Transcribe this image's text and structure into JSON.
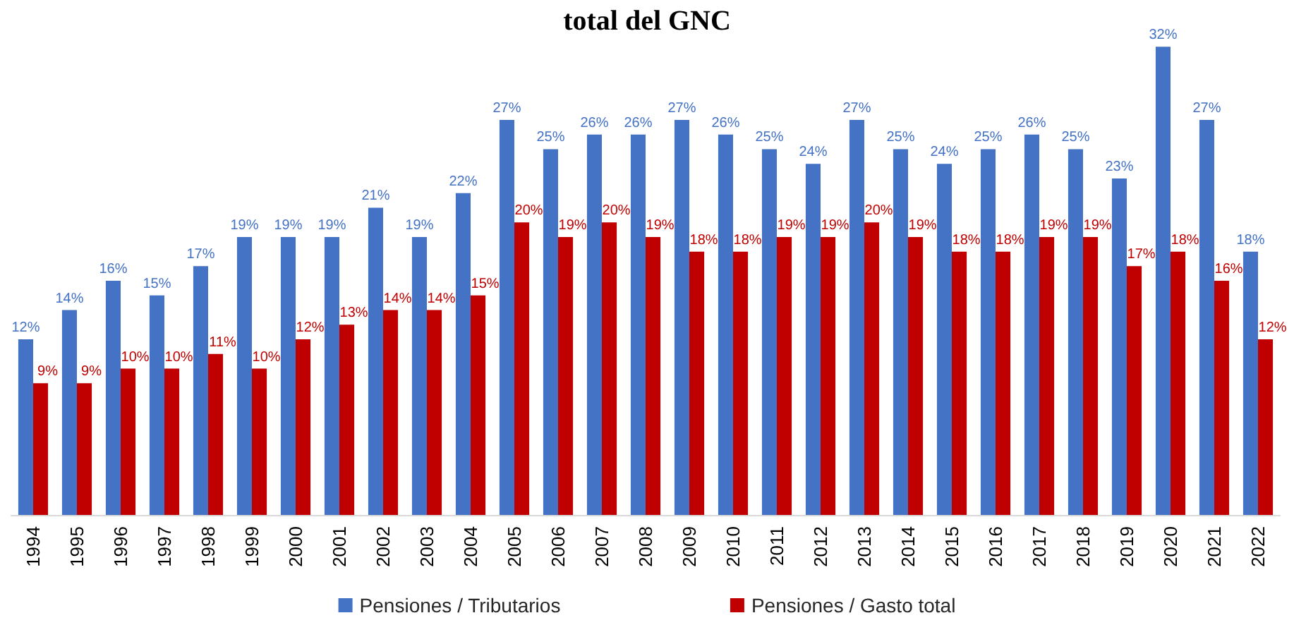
{
  "chart_data": {
    "type": "bar",
    "title": "total del GNC",
    "categories": [
      "1994",
      "1995",
      "1996",
      "1997",
      "1998",
      "1999",
      "2000",
      "2001",
      "2002",
      "2003",
      "2004",
      "2005",
      "2006",
      "2007",
      "2008",
      "2009",
      "2010",
      "2011",
      "2012",
      "2013",
      "2014",
      "2015",
      "2016",
      "2017",
      "2018",
      "2019",
      "2020",
      "2021",
      "2022"
    ],
    "series": [
      {
        "name": "Pensiones / Tributarios",
        "color": "#4472c4",
        "values": [
          12,
          14,
          16,
          15,
          17,
          19,
          19,
          19,
          21,
          19,
          22,
          27,
          25,
          26,
          26,
          27,
          26,
          25,
          24,
          27,
          25,
          24,
          25,
          26,
          25,
          23,
          32,
          27,
          18
        ],
        "value_labels": [
          "12%",
          "14%",
          "16%",
          "15%",
          "17%",
          "19%",
          "19%",
          "19%",
          "21%",
          "19%",
          "22%",
          "27%",
          "25%",
          "26%",
          "26%",
          "27%",
          "26%",
          "25%",
          "24%",
          "27%",
          "25%",
          "24%",
          "25%",
          "26%",
          "25%",
          "23%",
          "32%",
          "27%",
          "18%"
        ]
      },
      {
        "name": "Pensiones / Gasto total",
        "color": "#c00000",
        "values": [
          9,
          9,
          10,
          10,
          11,
          10,
          12,
          13,
          14,
          14,
          15,
          20,
          19,
          20,
          19,
          18,
          18,
          19,
          19,
          20,
          19,
          18,
          18,
          19,
          19,
          17,
          18,
          16,
          12
        ],
        "value_labels": [
          "9%",
          "9%",
          "10%",
          "10%",
          "11%",
          "10%",
          "12%",
          "13%",
          "14%",
          "14%",
          "15%",
          "20%",
          "19%",
          "20%",
          "19%",
          "18%",
          "18%",
          "19%",
          "19%",
          "20%",
          "19%",
          "18%",
          "18%",
          "19%",
          "19%",
          "17%",
          "18%",
          "16%",
          "12%"
        ]
      }
    ],
    "legend": "bottom"
  }
}
